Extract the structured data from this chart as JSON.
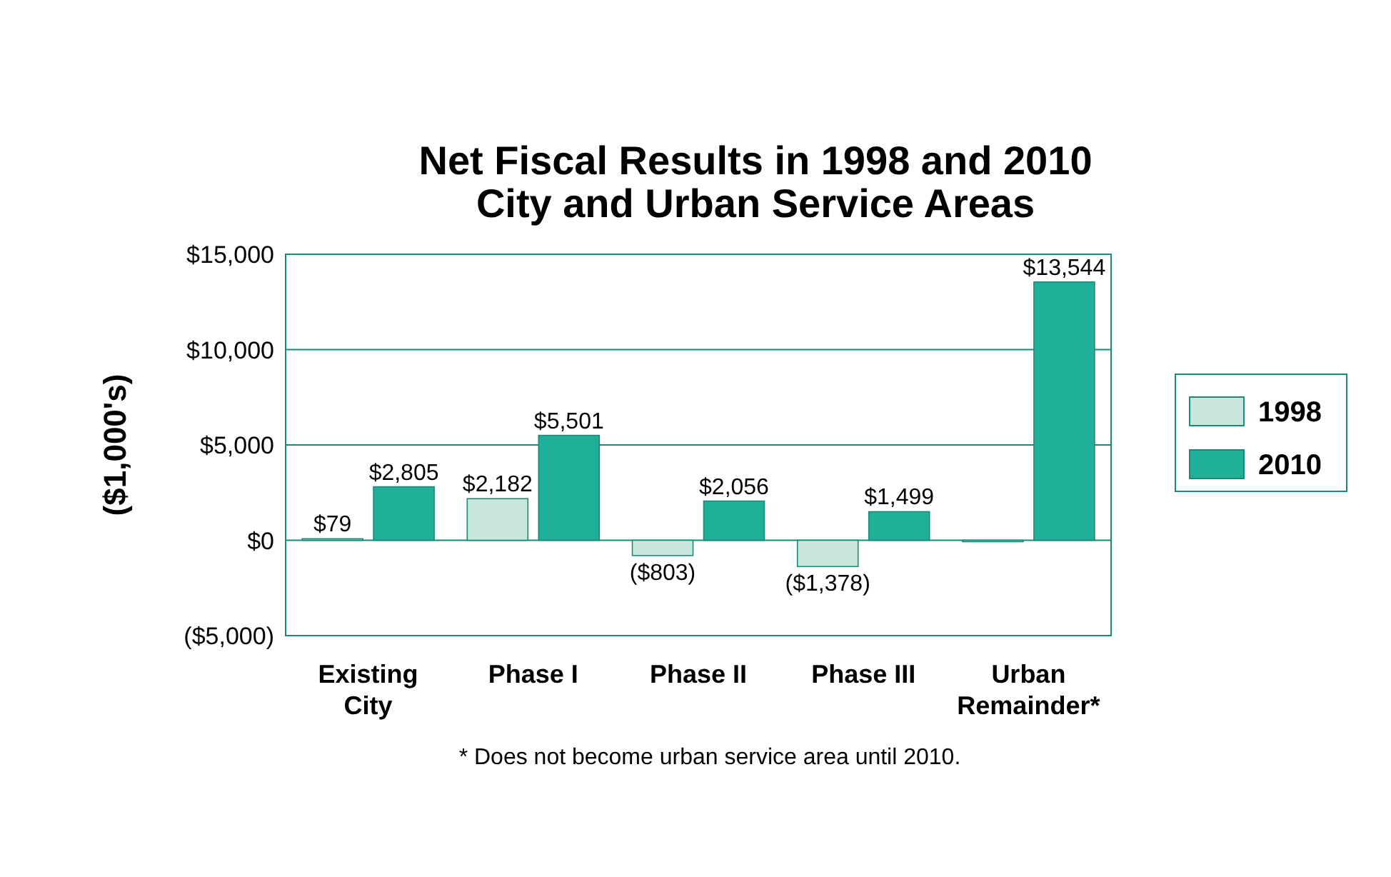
{
  "chart_data": {
    "type": "bar",
    "title": "Net Fiscal Results in 1998 and 2010\nCity and Urban Service Areas",
    "ylabel": "($1,000's)",
    "categories": [
      "Existing City",
      "Phase I",
      "Phase II",
      "Phase III",
      "Urban Remainder*"
    ],
    "series": [
      {
        "name": "1998",
        "color": "#c8e6dc",
        "values": [
          79,
          2182,
          -803,
          -1378,
          0
        ],
        "value_labels": [
          "$79",
          "$2,182",
          "($803)",
          "($1,378)",
          null
        ]
      },
      {
        "name": "2010",
        "color": "#20b09a",
        "values": [
          2805,
          5501,
          2056,
          1499,
          13544
        ],
        "value_labels": [
          "$2,805",
          "$5,501",
          "$2,056",
          "$1,499",
          "$13,544"
        ]
      }
    ],
    "ylim": [
      -5000,
      15000
    ],
    "yticks": [
      {
        "value": -5000,
        "label": "($5,000)"
      },
      {
        "value": 0,
        "label": "$0"
      },
      {
        "value": 5000,
        "label": "$5,000"
      },
      {
        "value": 10000,
        "label": "$10,000"
      },
      {
        "value": 15000,
        "label": "$15,000"
      }
    ],
    "grid": "y",
    "legend": "right",
    "annotations": [
      "* Does not become urban service area until 2010."
    ]
  }
}
